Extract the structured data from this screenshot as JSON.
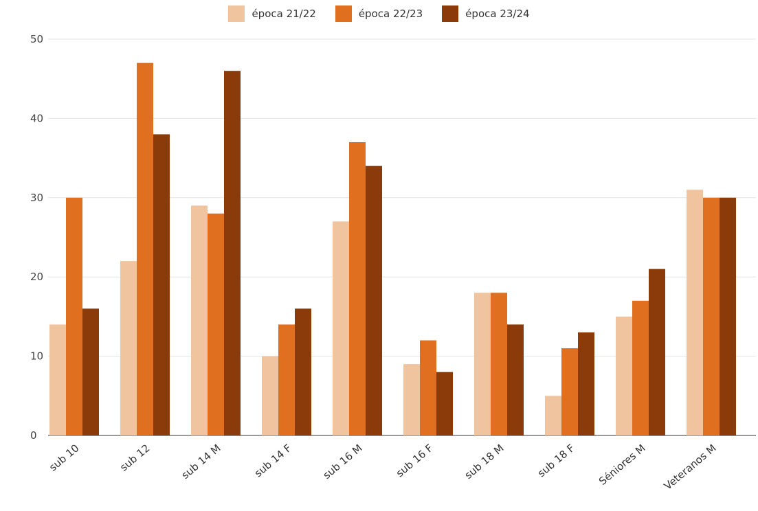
{
  "chart_data": {
    "type": "bar",
    "title": "",
    "xlabel": "",
    "ylabel": "",
    "categories": [
      "sub 10",
      "sub 12",
      "sub 14 M",
      "sub 14 F",
      "sub 16 M",
      "sub 16 F",
      "sub 18 M",
      "sub 18 F",
      "Séniores M",
      "Veteranos M"
    ],
    "series": [
      {
        "name": "época 21/22",
        "color": "#F1C4A0",
        "values": [
          14,
          22,
          29,
          10,
          27,
          9,
          18,
          5,
          15,
          31
        ]
      },
      {
        "name": "época 22/23",
        "color": "#E07020",
        "values": [
          30,
          47,
          28,
          14,
          37,
          12,
          18,
          11,
          17,
          30
        ]
      },
      {
        "name": "época 23/24",
        "color": "#8B3A0A",
        "values": [
          16,
          38,
          46,
          16,
          34,
          8,
          14,
          13,
          21,
          30
        ]
      }
    ],
    "ylim": [
      0,
      50
    ],
    "yticks": [
      0,
      10,
      20,
      30,
      40,
      50
    ],
    "grid": true,
    "legend_position": "top-center"
  }
}
